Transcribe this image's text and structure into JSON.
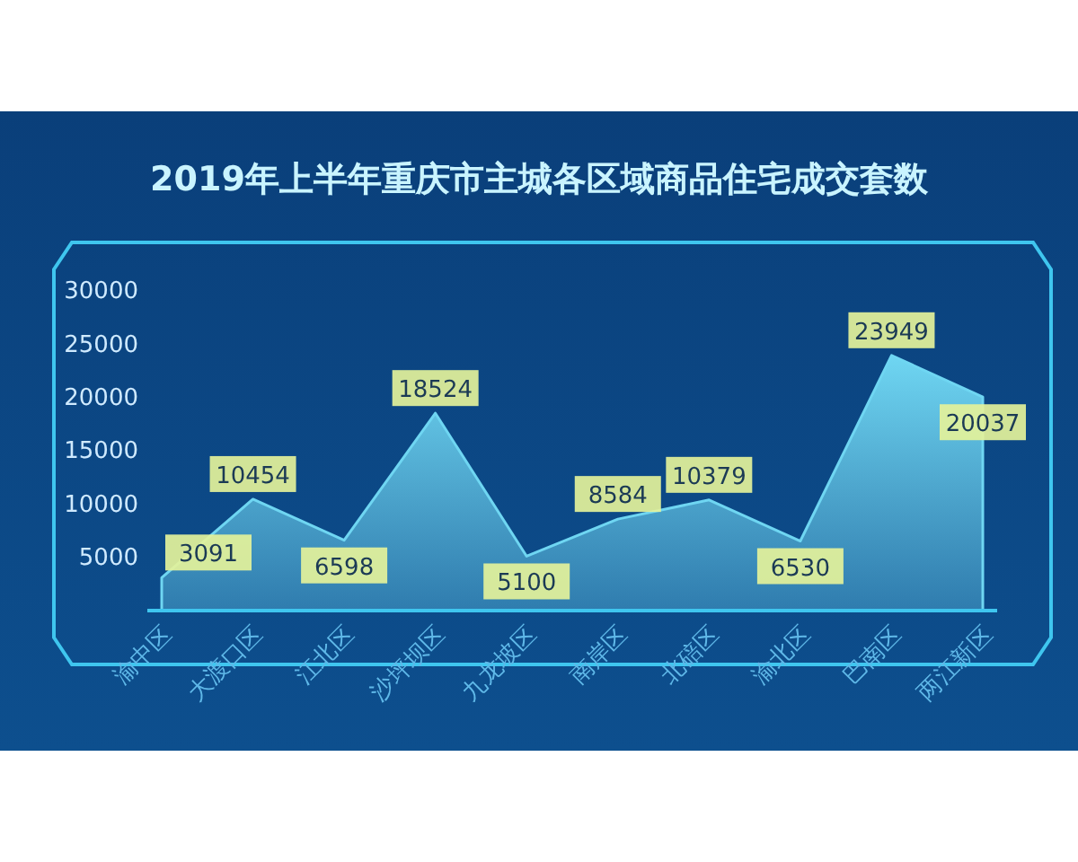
{
  "chart_data": {
    "type": "area",
    "title": "2019年上半年重庆市主城各区域商品住宅成交套数",
    "categories": [
      "渝中区",
      "大渡口区",
      "江北区",
      "沙坪坝区",
      "九龙坡区",
      "南岸区",
      "北碚区",
      "渝北区",
      "巴南区",
      "两江新区"
    ],
    "values": [
      3091,
      10454,
      6598,
      18524,
      5100,
      8584,
      10379,
      6530,
      23949,
      20037
    ],
    "color": "#6fd6f2",
    "ylim": [
      0,
      30000
    ],
    "yticks": [
      5000,
      10000,
      15000,
      20000,
      25000,
      30000
    ],
    "grid": false,
    "data_labels": true
  }
}
